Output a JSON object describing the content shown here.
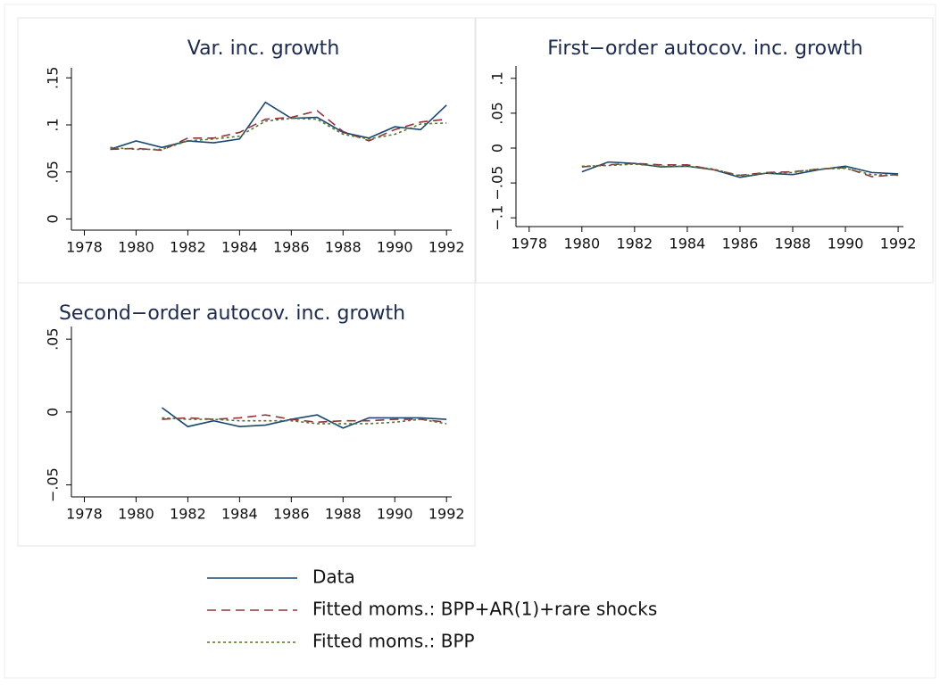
{
  "chart_data": [
    {
      "type": "line",
      "title": "Var. inc. growth",
      "x": [
        1979,
        1980,
        1981,
        1982,
        1983,
        1984,
        1985,
        1986,
        1987,
        1988,
        1989,
        1990,
        1991,
        1992
      ],
      "series": [
        {
          "values": [
            0.074,
            0.083,
            0.076,
            0.083,
            0.081,
            0.085,
            0.124,
            0.107,
            0.108,
            0.092,
            0.086,
            0.098,
            0.095,
            0.121
          ]
        },
        {
          "values": [
            0.074,
            0.075,
            0.073,
            0.086,
            0.086,
            0.092,
            0.106,
            0.108,
            0.115,
            0.093,
            0.083,
            0.095,
            0.103,
            0.106
          ]
        },
        {
          "values": [
            0.076,
            0.074,
            0.074,
            0.083,
            0.085,
            0.088,
            0.104,
            0.107,
            0.106,
            0.09,
            0.085,
            0.09,
            0.101,
            0.102
          ]
        }
      ],
      "xlim": [
        1977.5,
        1992.2
      ],
      "xticks": [
        1978,
        1980,
        1982,
        1984,
        1986,
        1988,
        1990,
        1992
      ],
      "ylim": [
        -0.01,
        0.155
      ],
      "yticks": [
        0,
        {
          "value": 0.05,
          "label": ".05"
        },
        {
          "value": 0.1,
          "label": ".1"
        },
        {
          "value": 0.15,
          "label": ".15"
        }
      ]
    },
    {
      "type": "line",
      "title": "First−order autocov. inc. growth",
      "x": [
        1980,
        1981,
        1982,
        1983,
        1984,
        1985,
        1986,
        1987,
        1988,
        1989,
        1990,
        1991,
        1992
      ],
      "series": [
        {
          "values": [
            -0.034,
            -0.02,
            -0.022,
            -0.027,
            -0.026,
            -0.031,
            -0.042,
            -0.036,
            -0.038,
            -0.031,
            -0.026,
            -0.035,
            -0.037
          ]
        },
        {
          "values": [
            -0.027,
            -0.024,
            -0.022,
            -0.024,
            -0.024,
            -0.031,
            -0.039,
            -0.035,
            -0.034,
            -0.03,
            -0.028,
            -0.041,
            -0.038
          ]
        },
        {
          "values": [
            -0.026,
            -0.025,
            -0.023,
            -0.026,
            -0.026,
            -0.03,
            -0.04,
            -0.036,
            -0.035,
            -0.03,
            -0.029,
            -0.038,
            -0.039
          ]
        }
      ],
      "xlim": [
        1977.5,
        1992.2
      ],
      "xticks": [
        1978,
        1980,
        1982,
        1984,
        1986,
        1988,
        1990,
        1992
      ],
      "ylim": [
        -0.11,
        0.11
      ],
      "yticks": [
        {
          "value": -0.1,
          "label": "−.1"
        },
        {
          "value": -0.05,
          "label": "−.05"
        },
        0,
        {
          "value": 0.05,
          "label": ".05"
        },
        {
          "value": 0.1,
          "label": ".1"
        }
      ]
    },
    {
      "type": "line",
      "title": "Second−order autocov. inc. growth",
      "x": [
        1981,
        1982,
        1983,
        1984,
        1985,
        1986,
        1987,
        1988,
        1989,
        1990,
        1991,
        1992
      ],
      "series": [
        {
          "values": [
            0.003,
            -0.01,
            -0.006,
            -0.01,
            -0.009,
            -0.005,
            -0.002,
            -0.011,
            -0.004,
            -0.004,
            -0.004,
            -0.005
          ]
        },
        {
          "values": [
            -0.005,
            -0.004,
            -0.005,
            -0.004,
            -0.002,
            -0.005,
            -0.007,
            -0.006,
            -0.006,
            -0.005,
            -0.005,
            -0.007
          ]
        },
        {
          "values": [
            -0.004,
            -0.005,
            -0.005,
            -0.006,
            -0.006,
            -0.006,
            -0.008,
            -0.008,
            -0.008,
            -0.007,
            -0.005,
            -0.008
          ]
        }
      ],
      "xlim": [
        1977.5,
        1992.2
      ],
      "xticks": [
        1978,
        1980,
        1982,
        1984,
        1986,
        1988,
        1990,
        1992
      ],
      "ylim": [
        -0.057,
        0.055
      ],
      "yticks": [
        {
          "value": -0.05,
          "label": "−.05"
        },
        0,
        {
          "value": 0.05,
          "label": ".05"
        }
      ]
    }
  ],
  "legend": [
    {
      "name": "Data",
      "color": "#1a476f",
      "dash": "solid"
    },
    {
      "name": "Fitted moms.: BPP+AR(1)+rare shocks",
      "color": "#90353b",
      "dash": "dash"
    },
    {
      "name": "Fitted moms.: BPP",
      "color": "#55752f",
      "dash": "dot"
    }
  ]
}
